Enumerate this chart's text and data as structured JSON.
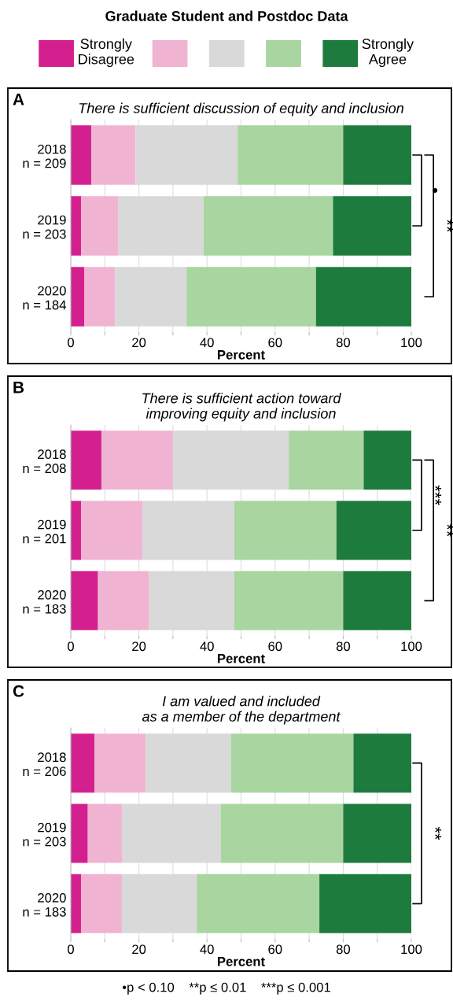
{
  "chart_data": [
    {
      "type": "bar",
      "orientation": "horizontal",
      "stacked": true,
      "legend_title": "Graduate Student and Postdoc Data",
      "legend": "top",
      "title": "There is sufficient discussion of equity and inclusion",
      "xlabel": "Percent",
      "categories": [
        "2018\nn = 209",
        "2019\nn = 203",
        "2020\nn = 184"
      ],
      "series": [
        {
          "name": "Strongly Disagree",
          "color": "#d4208f",
          "values": [
            6,
            3,
            4
          ]
        },
        {
          "color": "#f0b4d2",
          "values": [
            13,
            11,
            9
          ]
        },
        {
          "color": "#d9d9d9",
          "values": [
            30,
            25,
            21
          ]
        },
        {
          "color": "#a8d5a0",
          "values": [
            31,
            38,
            38
          ]
        },
        {
          "name": "Strongly Agree",
          "color": "#1e7b3e",
          "values": [
            20,
            23,
            28
          ]
        }
      ],
      "xlim": [
        0,
        100
      ],
      "xticks": [
        0,
        {
          "value": 10,
          "label": null
        },
        20,
        {
          "value": 30,
          "label": null
        },
        40,
        {
          "value": 50,
          "label": null
        },
        60,
        {
          "value": 70,
          "label": null
        },
        80,
        {
          "value": 90,
          "label": null
        },
        100
      ],
      "grid": "x",
      "annotations": [
        "A",
        "•",
        "**"
      ]
    },
    {
      "type": "bar",
      "orientation": "horizontal",
      "stacked": true,
      "title": "There is sufficient action toward\nimproving equity and inclusion",
      "xlabel": "Percent",
      "categories": [
        "2018\nn = 208",
        "2019\nn = 201",
        "2020\nn = 183"
      ],
      "series": [
        {
          "color": "#d4208f",
          "values": [
            9,
            3,
            8
          ]
        },
        {
          "color": "#f0b4d2",
          "values": [
            21,
            18,
            15
          ]
        },
        {
          "color": "#d9d9d9",
          "values": [
            34,
            27,
            25
          ]
        },
        {
          "color": "#a8d5a0",
          "values": [
            22,
            30,
            32
          ]
        },
        {
          "color": "#1e7b3e",
          "values": [
            14,
            22,
            20
          ]
        }
      ],
      "xlim": [
        0,
        100
      ],
      "xticks": [
        0,
        {
          "value": 10,
          "label": null
        },
        20,
        {
          "value": 30,
          "label": null
        },
        40,
        {
          "value": 50,
          "label": null
        },
        60,
        {
          "value": 70,
          "label": null
        },
        80,
        {
          "value": 90,
          "label": null
        },
        100
      ],
      "grid": "x",
      "annotations": [
        "B",
        "***",
        "**"
      ]
    },
    {
      "type": "bar",
      "orientation": "horizontal",
      "stacked": true,
      "title": "I am valued and included\nas a member of the department",
      "xlabel": "Percent",
      "categories": [
        "2018\nn = 206",
        "2019\nn = 203",
        "2020\nn = 183"
      ],
      "series": [
        {
          "color": "#d4208f",
          "values": [
            7,
            5,
            3
          ]
        },
        {
          "color": "#f0b4d2",
          "values": [
            15,
            10,
            12
          ]
        },
        {
          "color": "#d9d9d9",
          "values": [
            25,
            29,
            22
          ]
        },
        {
          "color": "#a8d5a0",
          "values": [
            36,
            36,
            36
          ]
        },
        {
          "color": "#1e7b3e",
          "values": [
            17,
            20,
            27
          ]
        }
      ],
      "xlim": [
        0,
        100
      ],
      "xticks": [
        0,
        {
          "value": 10,
          "label": null
        },
        20,
        {
          "value": 30,
          "label": null
        },
        40,
        {
          "value": 50,
          "label": null
        },
        60,
        {
          "value": 70,
          "label": null
        },
        80,
        {
          "value": 90,
          "label": null
        },
        100
      ],
      "grid": "x",
      "annotations": [
        "C",
        "**",
        "•p < 0.10    **p ≤ 0.01    ***p ≤ 0.001"
      ]
    }
  ]
}
